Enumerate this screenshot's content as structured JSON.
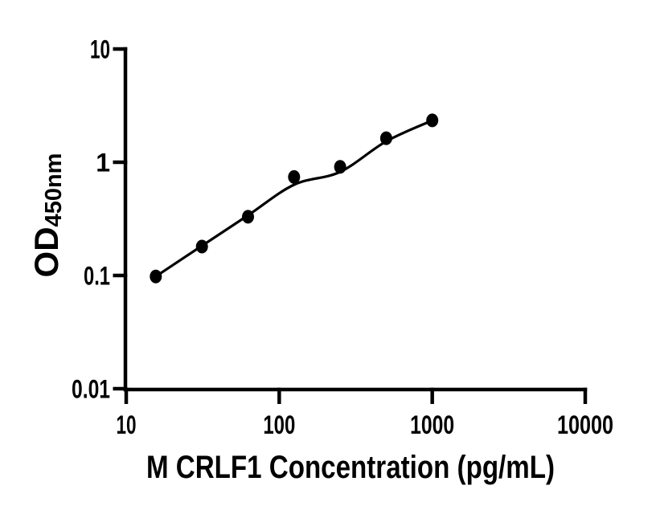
{
  "figure": {
    "background_color": "#ffffff",
    "ink_color": "#000000"
  },
  "chart_data": {
    "type": "scatter",
    "title": "",
    "xlabel": "M CRLF1 Concentration (pg/mL)",
    "ylabel": "OD",
    "ylabel_subscript": "450nm",
    "x_scale": "log",
    "y_scale": "log",
    "xlim": [
      10,
      10000
    ],
    "ylim": [
      0.01,
      10
    ],
    "x_ticks": [
      10,
      100,
      1000,
      10000
    ],
    "y_ticks": [
      10,
      1,
      0.1,
      0.01
    ],
    "x_tick_labels": [
      "10",
      "100",
      "1000",
      "10000"
    ],
    "y_tick_labels": [
      "10",
      "1",
      "0.1",
      "0.01"
    ],
    "grid": false,
    "legend": false,
    "series": [
      {
        "name": "M CRLF1 standard curve points",
        "marker": "filled-circle",
        "color": "#000000",
        "x": [
          15.6,
          31.25,
          62.5,
          125,
          250,
          500,
          1000
        ],
        "y": [
          0.098,
          0.18,
          0.33,
          0.74,
          0.91,
          1.63,
          2.34
        ]
      }
    ],
    "trend_line": {
      "name": "fitted standard curve",
      "color": "#000000",
      "x": [
        15.6,
        31.25,
        62.5,
        125,
        250,
        500,
        1000
      ],
      "y": [
        0.098,
        0.183,
        0.34,
        0.633,
        0.822,
        1.529,
        2.339
      ]
    }
  }
}
